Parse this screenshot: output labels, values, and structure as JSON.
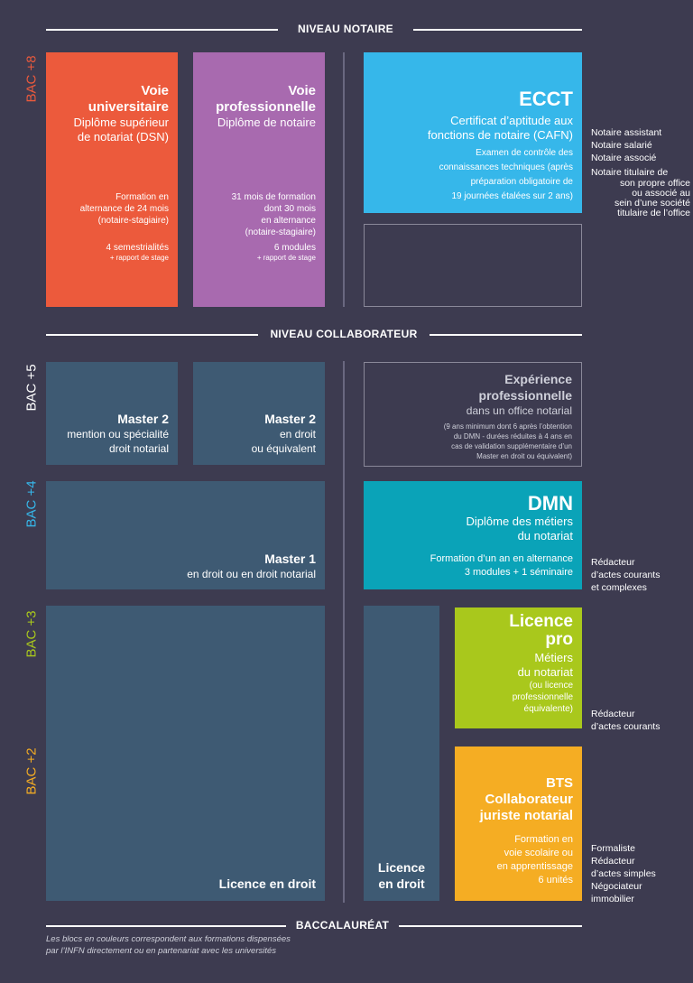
{
  "sections": {
    "notaire": "NIVEAU NOTAIRE",
    "collaborateur": "NIVEAU COLLABORATEUR",
    "bac": "BACCALAURÉAT"
  },
  "bac_levels": {
    "bac8": "BAC +8",
    "bac5": "BAC +5",
    "bac4": "BAC +4",
    "bac3": "BAC +3",
    "bac2": "BAC +2"
  },
  "colors": {
    "background": "#3d3b50",
    "orange": "#ec5a3c",
    "purple": "#a86aaf",
    "blue": "#36b7ea",
    "teal": "#0aa3b8",
    "lime": "#a9c81c",
    "yellow": "#f5ad23",
    "dark_block": "#3e5a73",
    "bac8_color": "#ec5a3c",
    "bac5_color": "#ffffff",
    "bac4_color": "#36b7ea",
    "bac3_color": "#a9c81c",
    "bac2_color": "#f5ad23"
  },
  "voie_univ": {
    "title1": "Voie",
    "title2": "universitaire",
    "diploma1": "Diplôme supérieur",
    "diploma2": "de notariat (DSN)",
    "form1": "Formation en",
    "form2": "alternance de 24 mois",
    "form3": "(notaire-stagiaire)",
    "sem": "4 semestrialités",
    "stage": "+ rapport de stage"
  },
  "voie_pro": {
    "title1": "Voie",
    "title2": "professionnelle",
    "diploma": "Diplôme de notaire",
    "form1": "31 mois de formation",
    "form2": "dont 30 mois",
    "form3": "en alternance",
    "form4": "(notaire-stagiaire)",
    "modules": "6 modules",
    "stage": "+ rapport de stage"
  },
  "ecct": {
    "title": "ECCT",
    "cert1": "Certificat d’aptitude aux",
    "cert2": "fonctions de notaire (CAFN)",
    "exam1": "Examen de contrôle des",
    "exam2": "connaissances techniques (après",
    "exam3": "préparation obligatoire de",
    "exam4": "19 journées étalées sur 2 ans)"
  },
  "notaire_roles": {
    "r1": "Notaire assistant",
    "r2": "Notaire salarié",
    "r3": "Notaire associé",
    "r4a": "Notaire titulaire de",
    "r4b": "son propre office",
    "r4c": "ou associé au",
    "r4d": "sein d’une société",
    "r4e": "titulaire de l’office"
  },
  "master2a": {
    "title": "Master 2",
    "l1": "mention ou spécialité",
    "l2": "droit notarial"
  },
  "master2b": {
    "title": "Master 2",
    "l1": "en droit",
    "l2": "ou équivalent"
  },
  "experience": {
    "title1": "Expérience",
    "title2": "professionnelle",
    "sub": "dans un office notarial",
    "n1": "(9 ans minimum dont 6 après l’obtention",
    "n2": "du DMN - durées réduites à 4 ans en",
    "n3": "cas de validation supplémentaire d’un",
    "n4": "Master en droit ou équivalent)"
  },
  "master1": {
    "title": "Master 1",
    "sub": "en droit ou en droit notarial"
  },
  "dmn": {
    "title": "DMN",
    "d1": "Diplôme des métiers",
    "d2": "du notariat",
    "f1": "Formation d’un an en alternance",
    "f2": "3 modules + 1 séminaire"
  },
  "dmn_roles": {
    "r1": "Rédacteur",
    "r2": "d’actes courants",
    "r3": "et complexes"
  },
  "licence_droit": "Licence en droit",
  "licence_droit2": {
    "l1": "Licence",
    "l2": "en droit"
  },
  "licence_pro": {
    "t1": "Licence",
    "t2": "pro",
    "m1": "Métiers",
    "m2": "du notariat",
    "e1": "(ou licence",
    "e2": "professionnelle",
    "e3": "équivalente)"
  },
  "lp_roles": {
    "r1": "Rédacteur",
    "r2": "d’actes courants"
  },
  "bts": {
    "t1": "BTS",
    "t2": "Collaborateur",
    "t3": "juriste notarial",
    "f1": "Formation en",
    "f2": "voie scolaire ou",
    "f3": "en apprentissage",
    "f4": "6 unités"
  },
  "bts_roles": {
    "r1": "Formaliste",
    "r2": "Rédacteur",
    "r3": "d’actes simples",
    "r4": "Négociateur",
    "r5": "immobilier"
  },
  "footnote": {
    "l1": "Les blocs en couleurs correspondent aux formations dispensées",
    "l2": "par l’INFN directement ou en partenariat avec les universités"
  }
}
